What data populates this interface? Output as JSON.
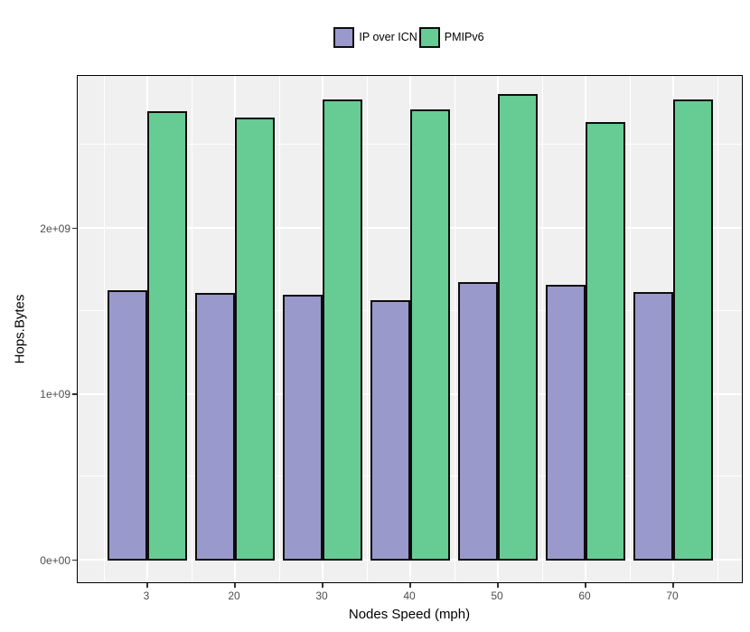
{
  "chart_data": {
    "type": "bar",
    "title": "",
    "xlabel": "Nodes Speed (mph)",
    "ylabel": "Hops.Bytes",
    "categories": [
      "3",
      "20",
      "30",
      "40",
      "50",
      "60",
      "70"
    ],
    "series": [
      {
        "name": "IP over ICN",
        "color": "#9999cb",
        "values": [
          1620000000.0,
          1600000000.0,
          1590000000.0,
          1560000000.0,
          1670000000.0,
          1650000000.0,
          1610000000.0
        ]
      },
      {
        "name": "PMIPv6",
        "color": "#67cb94",
        "values": [
          2700000000.0,
          2660000000.0,
          2770000000.0,
          2710000000.0,
          2800000000.0,
          2630000000.0,
          2770000000.0
        ]
      }
    ],
    "y_axis": {
      "ticks": [
        {
          "value": 0,
          "label": "0e+00"
        },
        {
          "value": 1000000000.0,
          "label": "1e+09"
        },
        {
          "value": 2000000000.0,
          "label": "2e+09"
        }
      ],
      "minor_values": [
        500000000.0,
        1500000000.0,
        2500000000.0
      ]
    },
    "ylim": [
      -140000000.0,
      2940000000.0
    ],
    "legend_position": "top",
    "grid": true,
    "colors": {
      "panel_background": "#f0f0f0",
      "gridline": "#ffffff",
      "bar_outline": "#0d0d0d",
      "tick_text": "#4d4d4d",
      "axis_title_text": "#000000"
    }
  }
}
